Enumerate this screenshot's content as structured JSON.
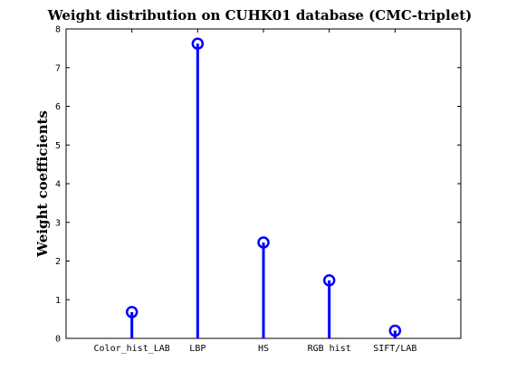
{
  "chart_data": {
    "type": "stem",
    "title": "Weight distribution on CUHK01 database (CMC-triplet)",
    "xlabel": "",
    "ylabel": "Weight coefficients",
    "categories": [
      "Color_hist_LAB",
      "LBP",
      "HS",
      "RGB hist",
      "SIFT/LAB"
    ],
    "values": [
      0.68,
      7.62,
      2.48,
      1.5,
      0.2
    ],
    "ylim": [
      0,
      8
    ],
    "yticks": [
      0,
      1,
      2,
      3,
      4,
      5,
      6,
      7,
      8
    ],
    "grid": false,
    "legend": "none",
    "color": "#0000ff"
  }
}
